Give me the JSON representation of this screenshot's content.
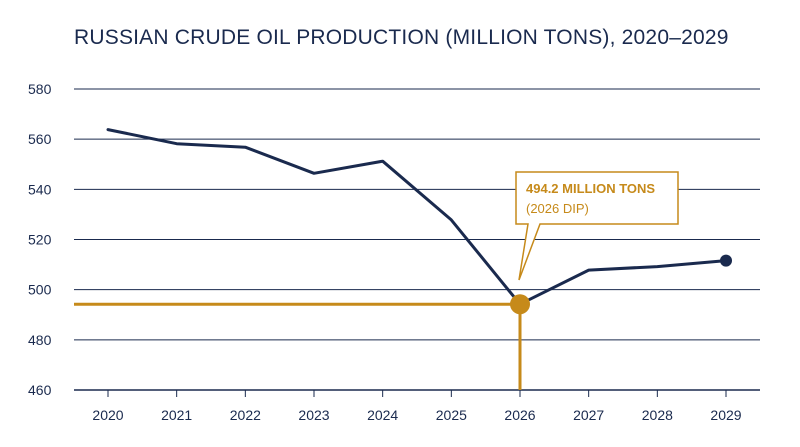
{
  "chart_data": {
    "type": "line",
    "title": "RUSSIAN CRUDE OIL PRODUCTION (MILLION TONS), 2020–2029",
    "x": [
      "2020",
      "2021",
      "2022",
      "2023",
      "2024",
      "2025",
      "2026",
      "2027",
      "2028",
      "2029"
    ],
    "series": [
      {
        "values": [
          563.8,
          558.2,
          556.8,
          546.4,
          551.2,
          527.8,
          494.2,
          507.8,
          509.2,
          511.6
        ]
      }
    ],
    "ylim": [
      460,
      580
    ],
    "yticks": [
      580,
      560,
      540,
      520,
      500,
      480,
      460
    ],
    "grid": true,
    "highlight": {
      "x": "2026",
      "value": 494.2,
      "label": "494.2 MILLION TONS",
      "sublabel": "(2026 DIP)"
    },
    "colors": {
      "line": "#1a2a4e",
      "accent": "#c68a1a",
      "grid": "#1a2a4e"
    }
  }
}
